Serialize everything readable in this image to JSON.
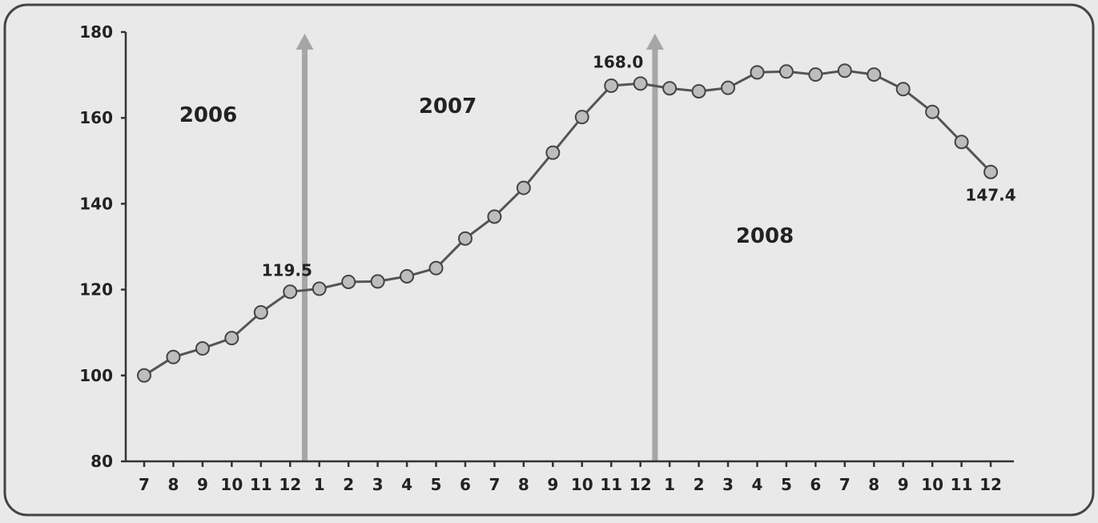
{
  "chart_data": {
    "type": "line",
    "title": "",
    "xlabel": "",
    "ylabel": "",
    "ylim": [
      80,
      180
    ],
    "y_ticks": [
      "80",
      "100",
      "120",
      "140",
      "160",
      "180"
    ],
    "x_tick_labels": [
      "7",
      "8",
      "9",
      "10",
      "11",
      "12",
      "1",
      "2",
      "3",
      "4",
      "5",
      "6",
      "7",
      "8",
      "9",
      "10",
      "11",
      "12",
      "1",
      "2",
      "3",
      "4",
      "5",
      "6",
      "7",
      "8",
      "9",
      "10",
      "11",
      "12"
    ],
    "year_labels": [
      "2006",
      "2007",
      "2008"
    ],
    "series": [
      {
        "values": [
          100.0,
          104.3,
          106.3,
          108.7,
          114.7,
          119.5,
          120.2,
          121.8,
          121.9,
          123.1,
          125.0,
          131.9,
          137.0,
          143.7,
          151.9,
          160.2,
          167.5,
          168.0,
          166.9,
          166.2,
          167.0,
          170.6,
          170.8,
          170.1,
          171.0,
          170.1,
          166.7,
          161.4,
          154.4,
          147.4
        ]
      }
    ],
    "data_labels": [
      {
        "index": 5,
        "text": "119.5"
      },
      {
        "index": 17,
        "text": "168.0"
      },
      {
        "index": 29,
        "text": "147.4"
      }
    ],
    "colors": {
      "line": "#555555",
      "marker_fill": "#bdbdbd",
      "arrow": "#a6a6a6",
      "background": "#e9e9e9"
    },
    "grid": false,
    "legend": "none"
  }
}
